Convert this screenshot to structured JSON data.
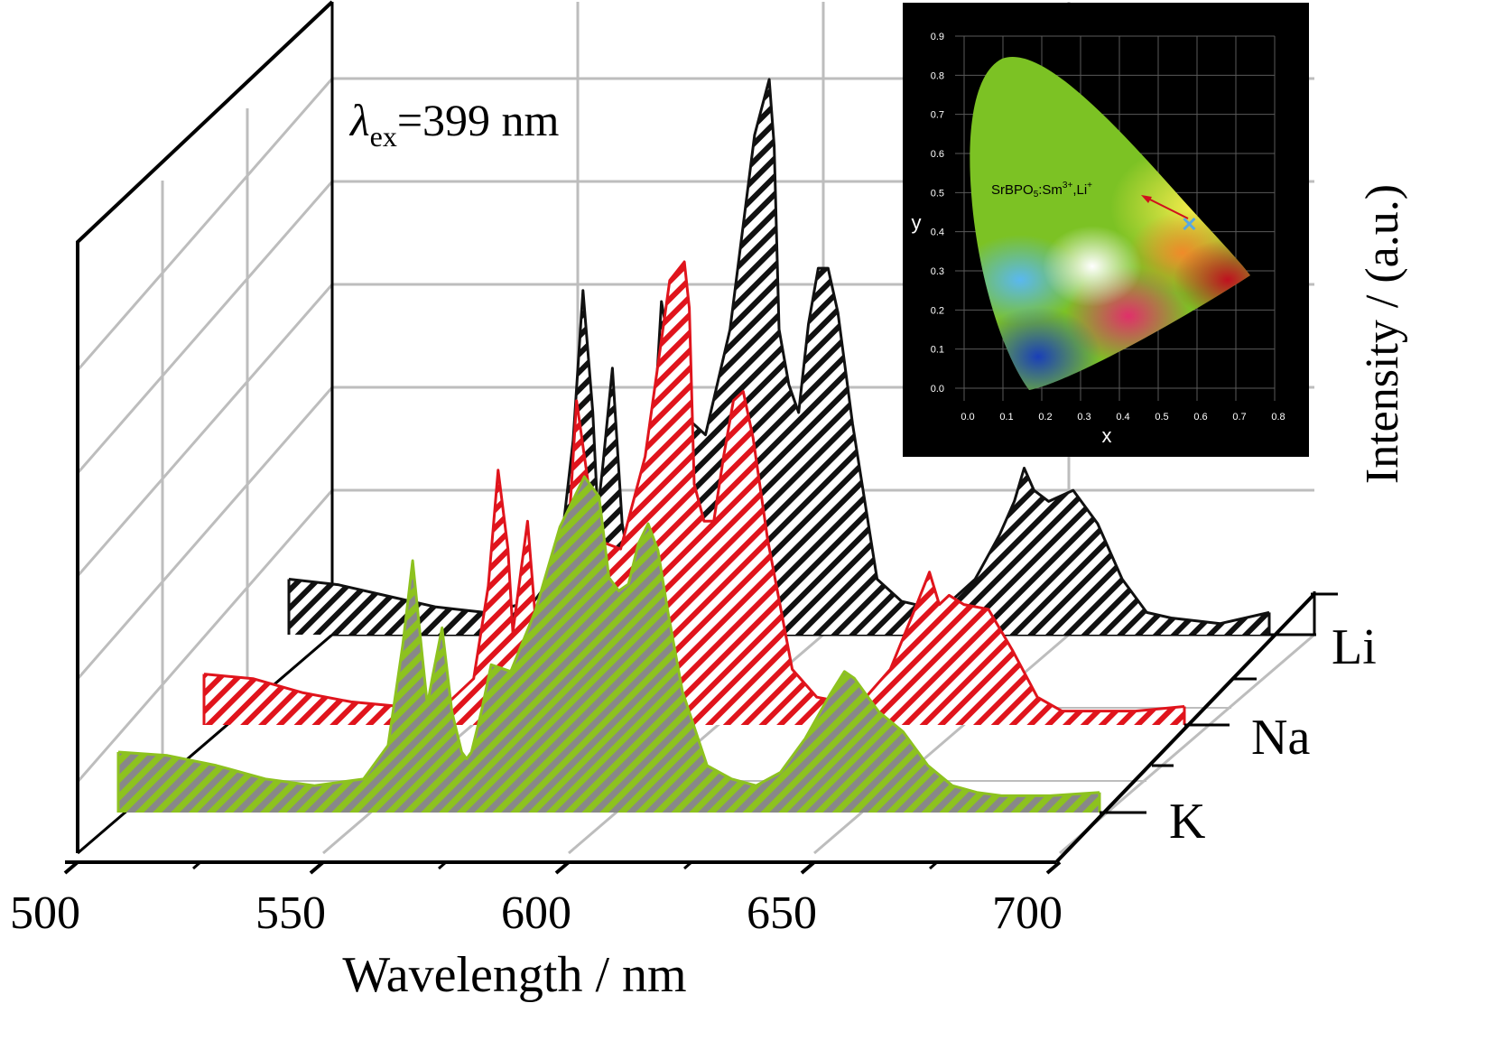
{
  "chart_data": {
    "type": "waterfall-line",
    "xlabel": "Wavelength / nm",
    "ylabel": "Intensity / (a.u.)",
    "x_ticks": [
      "500",
      "550",
      "600",
      "650",
      "700"
    ],
    "xlim": [
      500,
      700
    ],
    "annotation": {
      "symbol": "λ",
      "subscript": "ex",
      "text": "=399 nm"
    },
    "colors": {
      "Li": "#111111",
      "Na": "#e0141c",
      "K": "#8dc21f",
      "hatch_K": "#888888"
    },
    "series": [
      {
        "name": "Li",
        "x": [
          500,
          510,
          520,
          530,
          540,
          550,
          555,
          558,
          560,
          562,
          563,
          564,
          566,
          568,
          570,
          571,
          572,
          574,
          576,
          580,
          585,
          590,
          595,
          598,
          599,
          600,
          602,
          604,
          606,
          608,
          610,
          612,
          615,
          620,
          625,
          630,
          635,
          640,
          645,
          648,
          650,
          652,
          655,
          660,
          665,
          670,
          675,
          680,
          690,
          700
        ],
        "y": [
          0.1,
          0.09,
          0.07,
          0.05,
          0.04,
          0.06,
          0.12,
          0.35,
          0.62,
          0.4,
          0.22,
          0.3,
          0.48,
          0.2,
          0.1,
          0.08,
          0.1,
          0.3,
          0.6,
          0.4,
          0.36,
          0.55,
          0.9,
          1.0,
          0.88,
          0.55,
          0.45,
          0.4,
          0.56,
          0.66,
          0.66,
          0.58,
          0.38,
          0.1,
          0.06,
          0.05,
          0.06,
          0.1,
          0.18,
          0.24,
          0.3,
          0.26,
          0.24,
          0.26,
          0.2,
          0.1,
          0.04,
          0.03,
          0.02,
          0.04
        ]
      },
      {
        "name": "Na",
        "x": [
          500,
          510,
          520,
          530,
          540,
          550,
          555,
          558,
          560,
          562,
          563,
          564,
          566,
          568,
          570,
          571,
          572,
          574,
          576,
          580,
          585,
          590,
          595,
          598,
          599,
          600,
          602,
          604,
          606,
          608,
          610,
          612,
          615,
          620,
          625,
          630,
          635,
          640,
          645,
          648,
          650,
          652,
          655,
          660,
          665,
          670,
          675,
          680,
          690,
          700
        ],
        "y": [
          0.11,
          0.1,
          0.07,
          0.05,
          0.04,
          0.05,
          0.1,
          0.3,
          0.55,
          0.38,
          0.2,
          0.28,
          0.44,
          0.18,
          0.09,
          0.08,
          0.12,
          0.35,
          0.7,
          0.4,
          0.38,
          0.58,
          0.96,
          1.0,
          0.9,
          0.52,
          0.44,
          0.44,
          0.58,
          0.7,
          0.72,
          0.62,
          0.4,
          0.12,
          0.06,
          0.05,
          0.06,
          0.12,
          0.25,
          0.33,
          0.26,
          0.28,
          0.26,
          0.25,
          0.16,
          0.06,
          0.03,
          0.03,
          0.03,
          0.04
        ]
      },
      {
        "name": "K",
        "x": [
          500,
          510,
          520,
          530,
          540,
          550,
          555,
          558,
          560,
          562,
          563,
          564,
          566,
          568,
          570,
          571,
          572,
          574,
          576,
          580,
          585,
          590,
          595,
          598,
          599,
          600,
          602,
          604,
          606,
          608,
          610,
          612,
          615,
          620,
          625,
          630,
          635,
          640,
          645,
          648,
          650,
          652,
          655,
          660,
          665,
          670,
          675,
          680,
          690,
          700
        ],
        "y": [
          0.18,
          0.17,
          0.14,
          0.1,
          0.08,
          0.1,
          0.2,
          0.5,
          0.75,
          0.46,
          0.32,
          0.4,
          0.55,
          0.3,
          0.18,
          0.16,
          0.18,
          0.3,
          0.44,
          0.42,
          0.6,
          0.85,
          1.0,
          0.94,
          0.82,
          0.7,
          0.66,
          0.68,
          0.8,
          0.86,
          0.78,
          0.6,
          0.36,
          0.14,
          0.1,
          0.08,
          0.12,
          0.22,
          0.35,
          0.42,
          0.4,
          0.36,
          0.3,
          0.24,
          0.14,
          0.08,
          0.06,
          0.05,
          0.05,
          0.06
        ]
      }
    ],
    "inset": {
      "type": "cie-chromaticity",
      "xlabel": "x",
      "ylabel": "y",
      "x_ticks": [
        "0.0",
        "0.1",
        "0.2",
        "0.3",
        "0.4",
        "0.5",
        "0.6",
        "0.7",
        "0.8"
      ],
      "y_ticks": [
        "0.0",
        "0.1",
        "0.2",
        "0.3",
        "0.4",
        "0.5",
        "0.6",
        "0.7",
        "0.8",
        "0.9"
      ],
      "label_base": "SrBPO",
      "label_sub": "5",
      "label_mid": ":Sm",
      "label_sup1": "3+",
      "label_end": ",Li",
      "label_sup2": "+",
      "point": {
        "x": 0.58,
        "y": 0.42
      }
    }
  }
}
